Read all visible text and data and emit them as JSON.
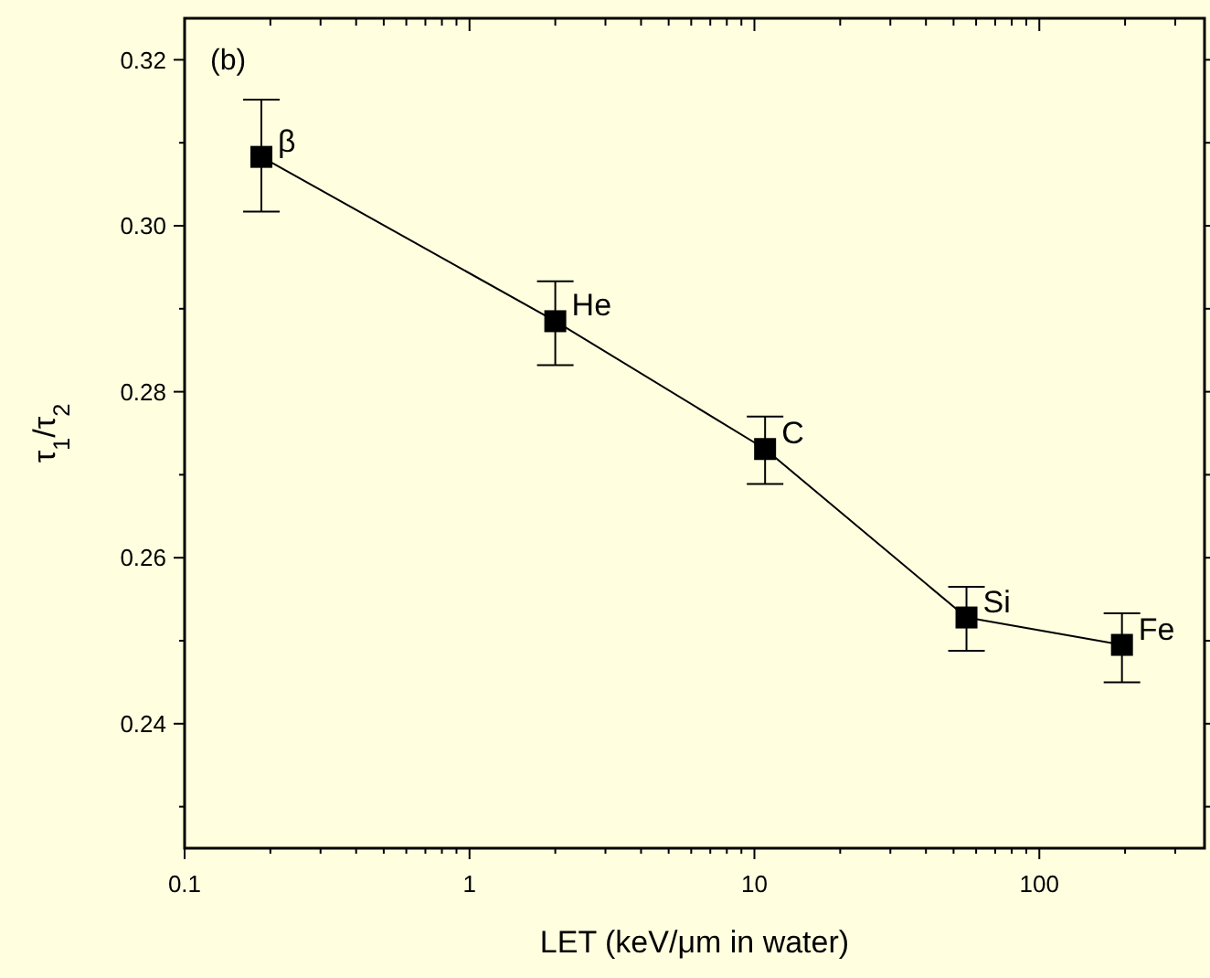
{
  "chart_data": {
    "type": "line",
    "xlabel": "LET (keV/μm in water)",
    "ylabel": "τ$_{1}$/τ$_{2}$",
    "x": [
      0.186,
      2.0,
      10.9,
      55.5,
      195
    ],
    "series": [
      {
        "color": "#000000",
        "values": [
          0.3083,
          0.2885,
          0.2731,
          0.2528,
          0.2495
        ],
        "errors": [
          [
            0.3017,
            0.3152
          ],
          [
            0.2832,
            0.2933
          ],
          [
            0.2689,
            0.277
          ],
          [
            0.2488,
            0.2565
          ],
          [
            0.245,
            0.2533
          ]
        ]
      }
    ],
    "log": "x",
    "marker": "square",
    "line_style": "solid",
    "xlim": [
      0.1,
      380
    ],
    "xticks": [
      0.1,
      1,
      10,
      100
    ],
    "ylim": [
      0.225,
      0.325
    ],
    "yticks": [
      0.24,
      0.26,
      0.28,
      {
        "value": 0.3,
        "label": "0.30"
      },
      0.32
    ],
    "annotations": [
      "(b)",
      {
        "text": "β",
        "x": 0.186,
        "y": 0.3083
      },
      {
        "text": "He",
        "x": 2.0,
        "y": 0.2885
      },
      {
        "text": "C",
        "x": 10.9,
        "y": 0.2731
      },
      {
        "text": "Si",
        "x": 55.5,
        "y": 0.2528
      },
      {
        "text": "Fe",
        "x": 195,
        "y": 0.2495
      }
    ]
  }
}
